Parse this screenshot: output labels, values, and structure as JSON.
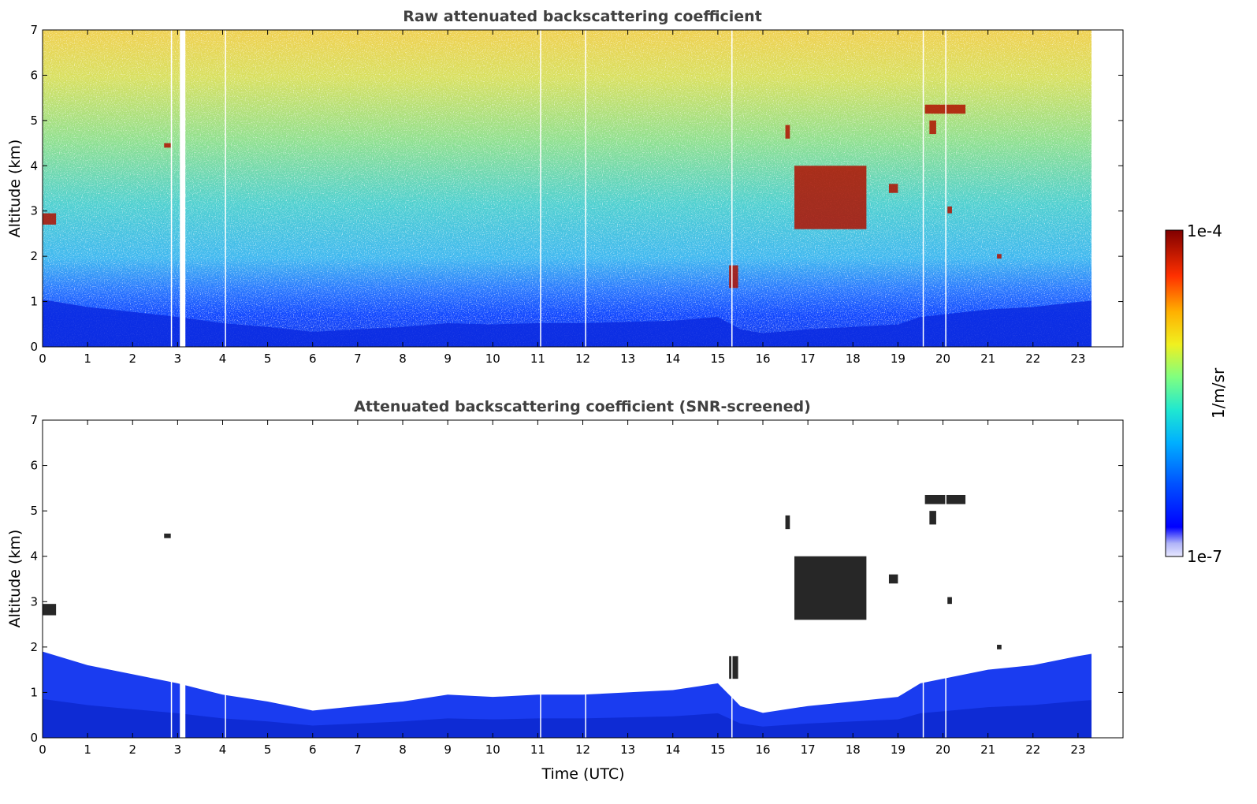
{
  "chart_data": [
    {
      "type": "heatmap",
      "title": "Raw attenuated backscattering coefficient",
      "xlabel": "",
      "ylabel": "Altitude (km)",
      "xlim": [
        0,
        24
      ],
      "ylim": [
        0,
        7
      ],
      "xticks": [
        0,
        1,
        2,
        3,
        4,
        5,
        6,
        7,
        8,
        9,
        10,
        11,
        12,
        13,
        14,
        15,
        16,
        17,
        18,
        19,
        20,
        21,
        22,
        23
      ],
      "yticks": [
        0,
        1,
        2,
        3,
        4,
        5,
        6,
        7
      ],
      "data_end_time": 23.3,
      "gap_times": [
        2.85,
        3.05,
        4.05,
        11.05,
        12.05,
        15.3,
        19.55,
        20.05
      ],
      "features": [
        {
          "kind": "noise_field",
          "description_values": {
            "low_alt_km": [
              0,
              1.0
            ],
            "noise_from_km": 0.6
          }
        },
        {
          "kind": "cloud",
          "time": [
            0.0,
            0.3
          ],
          "alt": [
            2.7,
            2.95
          ]
        },
        {
          "kind": "cloud",
          "time": [
            2.7,
            2.85
          ],
          "alt": [
            4.4,
            4.5
          ]
        },
        {
          "kind": "cloud",
          "time": [
            15.25,
            15.45
          ],
          "alt": [
            1.3,
            1.8
          ]
        },
        {
          "kind": "cloud",
          "time": [
            16.5,
            16.6
          ],
          "alt": [
            4.6,
            4.9
          ]
        },
        {
          "kind": "cloud",
          "time": [
            16.7,
            18.3
          ],
          "alt": [
            2.6,
            4.0
          ]
        },
        {
          "kind": "cloud",
          "time": [
            18.8,
            19.0
          ],
          "alt": [
            3.4,
            3.6
          ]
        },
        {
          "kind": "cloud",
          "time": [
            19.6,
            20.5
          ],
          "alt": [
            5.15,
            5.35
          ]
        },
        {
          "kind": "cloud",
          "time": [
            19.7,
            19.85
          ],
          "alt": [
            4.7,
            5.0
          ]
        },
        {
          "kind": "cloud",
          "time": [
            20.1,
            20.2
          ],
          "alt": [
            2.95,
            3.1
          ]
        },
        {
          "kind": "cloud",
          "time": [
            21.2,
            21.3
          ],
          "alt": [
            1.95,
            2.05
          ]
        }
      ]
    },
    {
      "type": "heatmap",
      "title": "Attenuated backscattering coefficient (SNR-screened)",
      "xlabel": "Time (UTC)",
      "ylabel": "Altitude (km)",
      "xlim": [
        0,
        24
      ],
      "ylim": [
        0,
        7
      ],
      "xticks": [
        0,
        1,
        2,
        3,
        4,
        5,
        6,
        7,
        8,
        9,
        10,
        11,
        12,
        13,
        14,
        15,
        16,
        17,
        18,
        19,
        20,
        21,
        22,
        23
      ],
      "yticks": [
        0,
        1,
        2,
        3,
        4,
        5,
        6,
        7
      ],
      "data_end_time": 23.3,
      "boundary_layer_top_km": {
        "time": [
          0,
          1,
          2,
          3,
          4,
          5,
          6,
          7,
          8,
          9,
          10,
          11,
          12,
          13,
          14,
          15,
          15.5,
          16,
          17,
          18,
          19,
          19.5,
          20,
          21,
          22,
          23,
          23.3
        ],
        "alt": [
          1.9,
          1.6,
          1.4,
          1.2,
          0.95,
          0.8,
          0.6,
          0.7,
          0.8,
          0.95,
          0.9,
          0.95,
          0.95,
          1.0,
          1.05,
          1.2,
          0.7,
          0.55,
          0.7,
          0.8,
          0.9,
          1.2,
          1.3,
          1.5,
          1.6,
          1.8,
          1.85
        ]
      }
    }
  ],
  "colorbar": {
    "label": "1/m/sr",
    "max_label": "1e-4",
    "min_label": "1e-7",
    "colormap": "jet"
  }
}
